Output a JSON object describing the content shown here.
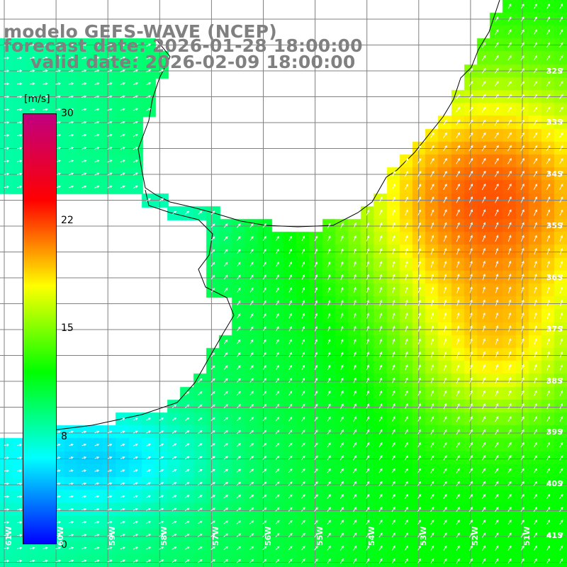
{
  "title": {
    "line1": "modelo GEFS-WAVE (NCEP)",
    "line2": "forecast date: 2026-01-28 18:00:00",
    "line3": "valid date: 2026-02-09 18:00:00"
  },
  "colorbar": {
    "unit": "[m/s]",
    "min": 0,
    "max": 30,
    "ticks": [
      "30",
      "22",
      "15",
      "8",
      "0"
    ],
    "colors": [
      "#0000ff",
      "#00ffff",
      "#00ff00",
      "#ffff00",
      "#ff0000",
      "#c00080"
    ]
  },
  "lat_labels": [
    "32S",
    "33S",
    "34S",
    "35S",
    "36S",
    "37S",
    "38S",
    "39S",
    "40S",
    "41S"
  ],
  "lon_labels": [
    "61W",
    "60W",
    "59W",
    "58W",
    "57W",
    "56W",
    "55W",
    "54W",
    "53W",
    "52W",
    "51W"
  ],
  "map": {
    "land_color": "#ffffff",
    "coast_color": "#000000",
    "grid_color": "#808080",
    "arrow_color": "#ffffff"
  }
}
